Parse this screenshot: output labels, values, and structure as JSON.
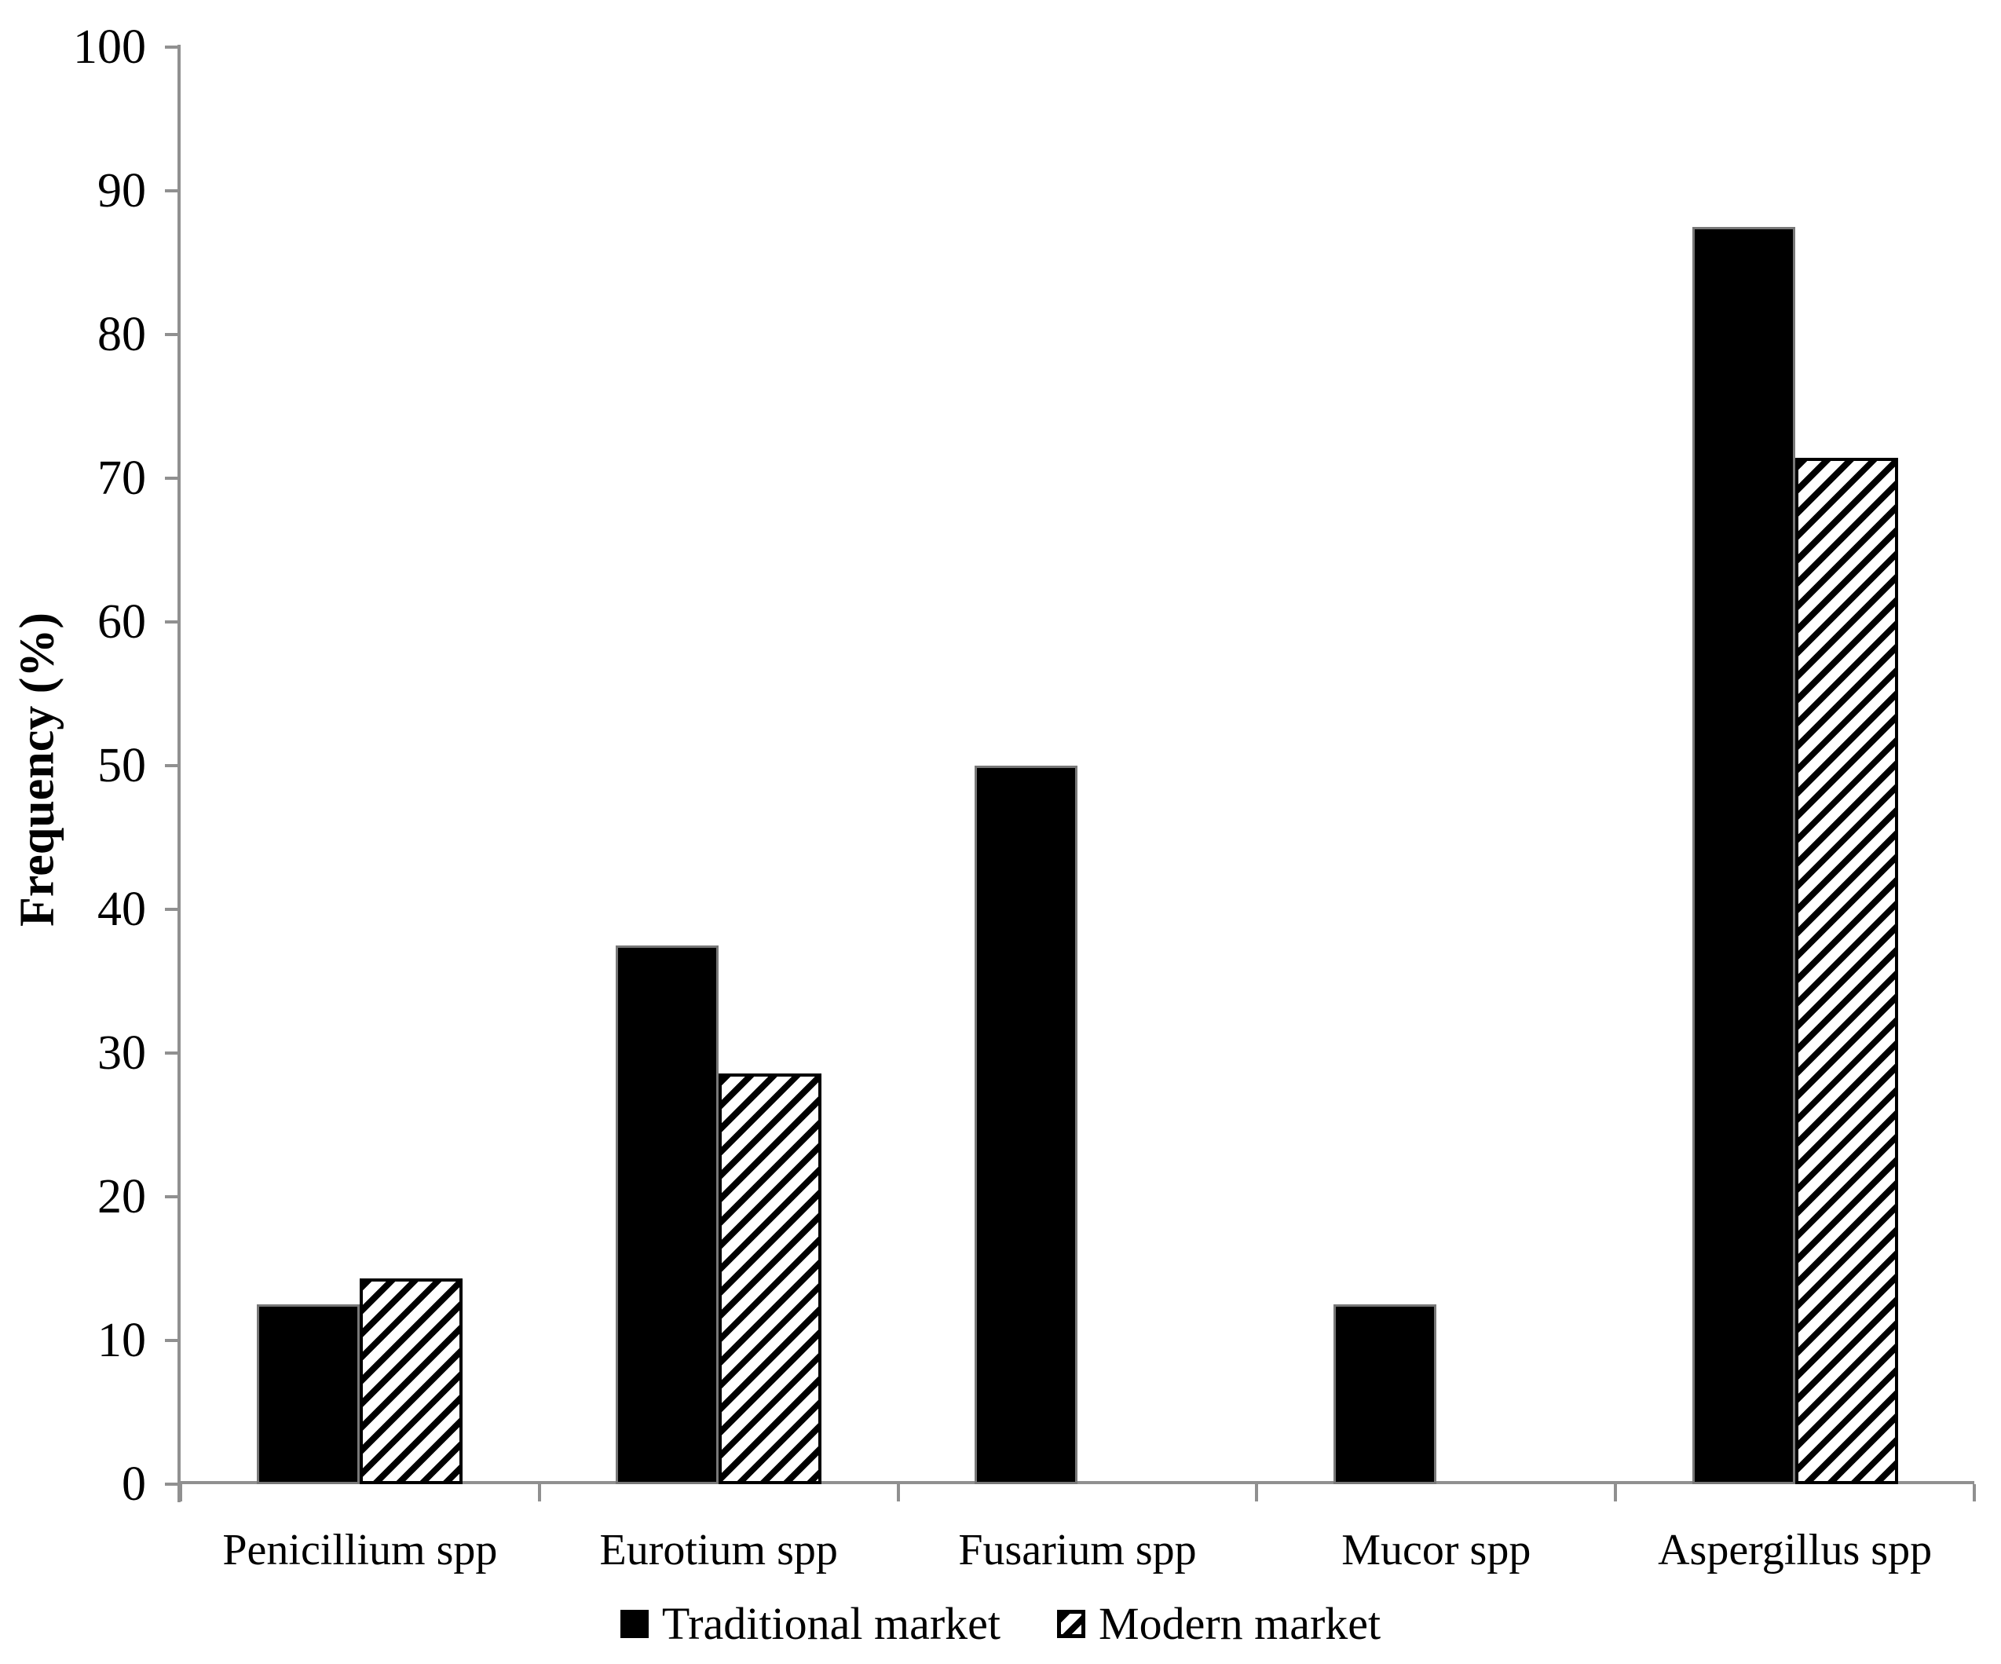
{
  "figure": {
    "background": "#ffffff"
  },
  "chart_data": {
    "type": "bar",
    "title": "",
    "xlabel": "",
    "ylabel": "Frequency (%)",
    "ylim": [
      0,
      100
    ],
    "ytick_step": 10,
    "ytick_labels": [
      "0",
      "10",
      "20",
      "30",
      "40",
      "50",
      "60",
      "70",
      "80",
      "90",
      "100"
    ],
    "categories": [
      "Penicillium spp",
      "Eurotium spp",
      "Fusarium spp",
      "Mucor spp",
      "Aspergillus spp"
    ],
    "series": [
      {
        "name": "Traditional market",
        "style": "solid-black",
        "values": [
          12.5,
          37.5,
          50,
          12.5,
          87.5
        ]
      },
      {
        "name": "Modern market",
        "style": "diagonal-hatch",
        "values": [
          14.3,
          28.6,
          0,
          0,
          71.4
        ]
      }
    ],
    "grid": false,
    "legend_position": "bottom-center"
  },
  "colors": {
    "bar_fill": "#000000",
    "hatch_foreground": "#000000",
    "hatch_background": "#ffffff",
    "axis_line": "#909090",
    "text": "#000000",
    "background": "#ffffff"
  }
}
